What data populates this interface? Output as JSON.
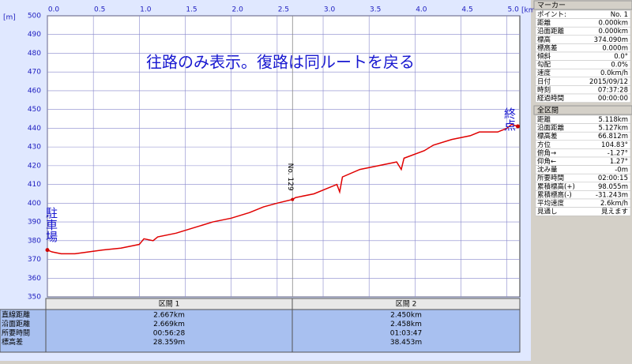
{
  "chart_data": {
    "type": "line",
    "x_unit": "[km]",
    "y_unit": "[m]",
    "annotation": "往路のみ表示。復路は同ルートを戻る",
    "start_label": "駐車場",
    "end_label": "終点",
    "marker_label": "No. 129",
    "color": "#e00000",
    "x": [
      0,
      0.05,
      0.15,
      0.3,
      0.45,
      0.6,
      0.8,
      1.0,
      1.05,
      1.15,
      1.2,
      1.4,
      1.6,
      1.8,
      2.0,
      2.2,
      2.35,
      2.5,
      2.667,
      2.7,
      2.9,
      3.05,
      3.15,
      3.18,
      3.21,
      3.4,
      3.6,
      3.8,
      3.85,
      3.88,
      4.1,
      4.2,
      4.4,
      4.6,
      4.7,
      4.9,
      5.0,
      5.05,
      5.118
    ],
    "values": [
      375,
      374,
      373,
      373,
      374,
      375,
      376,
      378,
      381,
      380,
      382,
      384,
      387,
      390,
      392,
      395,
      398,
      400,
      402,
      403,
      405,
      408,
      410,
      406,
      414,
      418,
      420,
      422,
      418,
      424,
      428,
      431,
      434,
      436,
      438,
      438,
      440,
      442,
      441
    ],
    "xlim": [
      0,
      5.14
    ],
    "ylim": [
      350,
      500
    ],
    "xticks": [
      {
        "value": 0,
        "label": "0.0"
      },
      0.5,
      {
        "value": 1,
        "label": "1.0"
      },
      1.5,
      {
        "value": 2,
        "label": "2.0"
      },
      2.5,
      {
        "value": 3,
        "label": "3.0"
      },
      3.5,
      {
        "value": 4,
        "label": "4.0"
      },
      4.5,
      {
        "value": 5,
        "label": "5.0"
      }
    ],
    "yticks": [
      350,
      360,
      370,
      380,
      390,
      400,
      410,
      420,
      430,
      440,
      450,
      460,
      470,
      480,
      490,
      500
    ],
    "grid": true
  },
  "sections": {
    "row_labels": [
      "直線距離",
      "沿面距離",
      "所要時間",
      "標高差"
    ],
    "columns": [
      {
        "title": "区間 1",
        "cells": [
          "2.667km",
          "2.669km",
          "00:56:28",
          "28.359m"
        ]
      },
      {
        "title": "区間 2",
        "cells": [
          "2.450km",
          "2.458km",
          "01:03:47",
          "38.453m"
        ]
      }
    ]
  },
  "marker_panel": {
    "title": "マーカー",
    "rows": [
      [
        "ポイント:",
        "No. 1"
      ],
      [
        "距離",
        "0.000km"
      ],
      [
        "沿面距離",
        "0.000km"
      ],
      [
        "標高",
        "374.090m"
      ],
      [
        "標高差",
        "0.000m"
      ],
      [
        "傾斜",
        "0.0°"
      ],
      [
        "勾配",
        "0.0%"
      ],
      [
        "速度",
        "0.0km/h"
      ],
      [
        "日付",
        "2015/09/12"
      ],
      [
        "時刻",
        "07:37:28"
      ],
      [
        "経過時間",
        "00:00:00"
      ]
    ]
  },
  "total_panel": {
    "title": "全区間",
    "rows": [
      [
        "距離",
        "5.118km"
      ],
      [
        "沿面距離",
        "5.127km"
      ],
      [
        "標高差",
        "66.812m"
      ],
      [
        "方位",
        "104.83°"
      ],
      [
        "俯角→",
        "-1.27°"
      ],
      [
        "仰角←",
        "1.27°"
      ],
      [
        "沈み量",
        "-0m"
      ],
      [
        "所要時間",
        "02:00:15"
      ],
      [
        "累積標高(+)",
        "98.055m"
      ],
      [
        "累積標高(-)",
        "-31.243m"
      ],
      [
        "平均速度",
        "2.6km/h"
      ],
      [
        "見通し",
        "見えます"
      ]
    ]
  }
}
